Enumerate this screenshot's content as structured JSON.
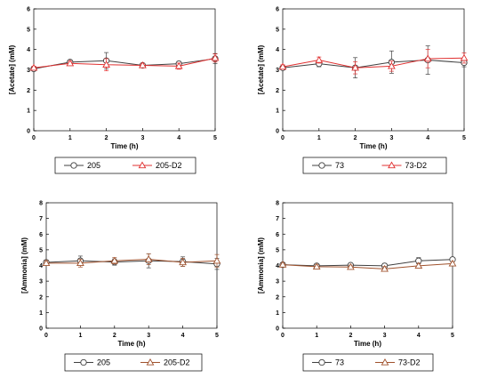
{
  "chart_data": [
    {
      "type": "line",
      "xlabel": "Time (h)",
      "ylabel": "[Acetate] (mM)",
      "xlim": [
        0,
        5
      ],
      "ylim": [
        0,
        6
      ],
      "xticks": [
        "0",
        "1",
        "2",
        "3",
        "4",
        "5"
      ],
      "yticks": [
        "0",
        "1",
        "2",
        "3",
        "4",
        "5",
        "6"
      ],
      "x": [
        0,
        1,
        2,
        3,
        4,
        5
      ],
      "legend": "bottom",
      "series": [
        {
          "name": "205",
          "values": [
            3.05,
            3.38,
            3.45,
            3.22,
            3.3,
            3.55
          ],
          "err": [
            0.08,
            0.1,
            0.4,
            0.1,
            0.12,
            0.25
          ],
          "color": "#404040",
          "marker": "circle"
        },
        {
          "name": "205-D2",
          "values": [
            3.1,
            3.32,
            3.25,
            3.22,
            3.18,
            3.58
          ],
          "err": [
            0.08,
            0.1,
            0.3,
            0.1,
            0.15,
            0.2
          ],
          "color": "#e03030",
          "marker": "triangle"
        }
      ]
    },
    {
      "type": "line",
      "xlabel": "Time (h)",
      "ylabel": "[Acetate] (mM)",
      "xlim": [
        0,
        5
      ],
      "ylim": [
        0,
        6
      ],
      "xticks": [
        "0",
        "1",
        "2",
        "3",
        "4",
        "5"
      ],
      "yticks": [
        "0",
        "1",
        "2",
        "3",
        "4",
        "5",
        "6"
      ],
      "x": [
        0,
        1,
        2,
        3,
        4,
        5
      ],
      "legend": "bottom",
      "series": [
        {
          "name": "73",
          "values": [
            3.1,
            3.3,
            3.1,
            3.38,
            3.48,
            3.35
          ],
          "err": [
            0.1,
            0.15,
            0.5,
            0.55,
            0.7,
            0.2
          ],
          "color": "#404040",
          "marker": "circle"
        },
        {
          "name": "73-D2",
          "values": [
            3.15,
            3.48,
            3.1,
            3.18,
            3.55,
            3.58
          ],
          "err": [
            0.1,
            0.15,
            0.3,
            0.25,
            0.45,
            0.25
          ],
          "color": "#e03030",
          "marker": "triangle"
        }
      ]
    },
    {
      "type": "line",
      "xlabel": "Time (h)",
      "ylabel": "[Ammonia] (mM)",
      "xlim": [
        0,
        5
      ],
      "ylim": [
        0,
        8
      ],
      "xticks": [
        "0",
        "1",
        "2",
        "3",
        "4",
        "5"
      ],
      "yticks": [
        "0",
        "1",
        "2",
        "3",
        "4",
        "5",
        "6",
        "7",
        "8"
      ],
      "x": [
        0,
        1,
        2,
        3,
        4,
        5
      ],
      "legend": "bottom",
      "series": [
        {
          "name": "205",
          "values": [
            4.2,
            4.3,
            4.22,
            4.3,
            4.25,
            4.1
          ],
          "err": [
            0.15,
            0.3,
            0.2,
            0.45,
            0.3,
            0.35
          ],
          "color": "#404040",
          "marker": "circle"
        },
        {
          "name": "205-D2",
          "values": [
            4.15,
            4.15,
            4.3,
            4.4,
            4.2,
            4.3
          ],
          "err": [
            0.15,
            0.25,
            0.2,
            0.35,
            0.25,
            0.4
          ],
          "color": "#a0522d",
          "marker": "triangle"
        }
      ]
    },
    {
      "type": "line",
      "xlabel": "Time (h)",
      "ylabel": "[Ammonia] (mM)",
      "xlim": [
        0,
        5
      ],
      "ylim": [
        0,
        8
      ],
      "xticks": [
        "0",
        "1",
        "2",
        "3",
        "4",
        "5"
      ],
      "yticks": [
        "0",
        "1",
        "2",
        "3",
        "4",
        "5",
        "6",
        "7",
        "8"
      ],
      "x": [
        0,
        1,
        2,
        3,
        4,
        5
      ],
      "legend": "bottom",
      "series": [
        {
          "name": "73",
          "values": [
            4.05,
            3.98,
            4.02,
            3.98,
            4.3,
            4.38
          ],
          "err": [
            0.1,
            0.12,
            0.12,
            0.15,
            0.2,
            0.12
          ],
          "color": "#404040",
          "marker": "circle"
        },
        {
          "name": "73-D2",
          "values": [
            4.05,
            3.92,
            3.9,
            3.78,
            3.98,
            4.12
          ],
          "err": [
            0.1,
            0.12,
            0.12,
            0.15,
            0.15,
            0.12
          ],
          "color": "#a0522d",
          "marker": "triangle"
        }
      ]
    }
  ]
}
